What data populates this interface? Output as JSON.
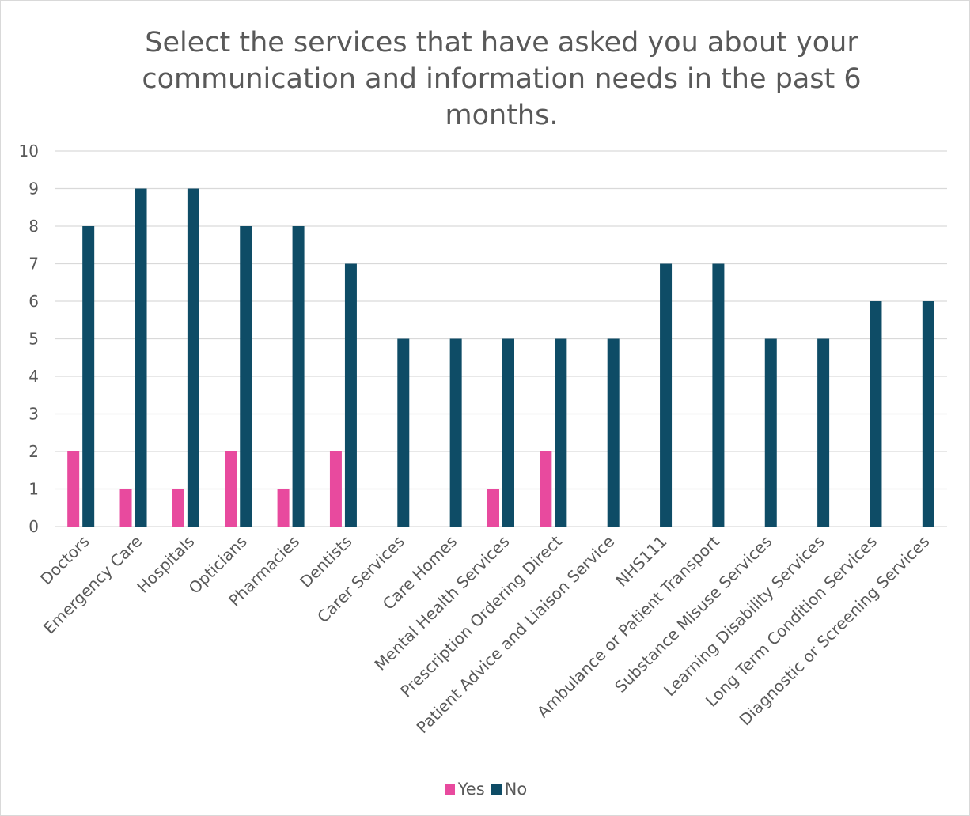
{
  "chart_data": {
    "type": "bar",
    "title": "Select the services that have asked you about your communication and information needs in the past 6 months.",
    "categories": [
      "Doctors",
      "Emergency Care",
      "Hospitals",
      "Opticians",
      "Pharmacies",
      "Dentists",
      "Carer Services",
      "Care Homes",
      "Mental Health Services",
      "Prescription Ordering Direct",
      "Patient Advice and Liaison Service",
      "NHS111",
      "Ambulance or Patient Transport",
      "Substance Misuse Services",
      "Learning Disability Services",
      "Long Term Condition Services",
      "Diagnostic or Screening Services"
    ],
    "series": [
      {
        "name": "Yes",
        "color": "#e84a9e",
        "values": [
          2,
          1,
          1,
          2,
          1,
          2,
          0,
          0,
          1,
          2,
          0,
          0,
          0,
          0,
          0,
          0,
          0
        ]
      },
      {
        "name": "No",
        "color": "#0e4c66",
        "values": [
          8,
          9,
          9,
          8,
          8,
          7,
          5,
          5,
          5,
          5,
          5,
          7,
          7,
          5,
          5,
          6,
          6
        ]
      }
    ],
    "ylim": [
      0,
      10
    ],
    "yticks": [
      "0",
      "1",
      "2",
      "3",
      "4",
      "5",
      "6",
      "7",
      "8",
      "9",
      "10"
    ],
    "grid": true,
    "legend": "bottom"
  }
}
